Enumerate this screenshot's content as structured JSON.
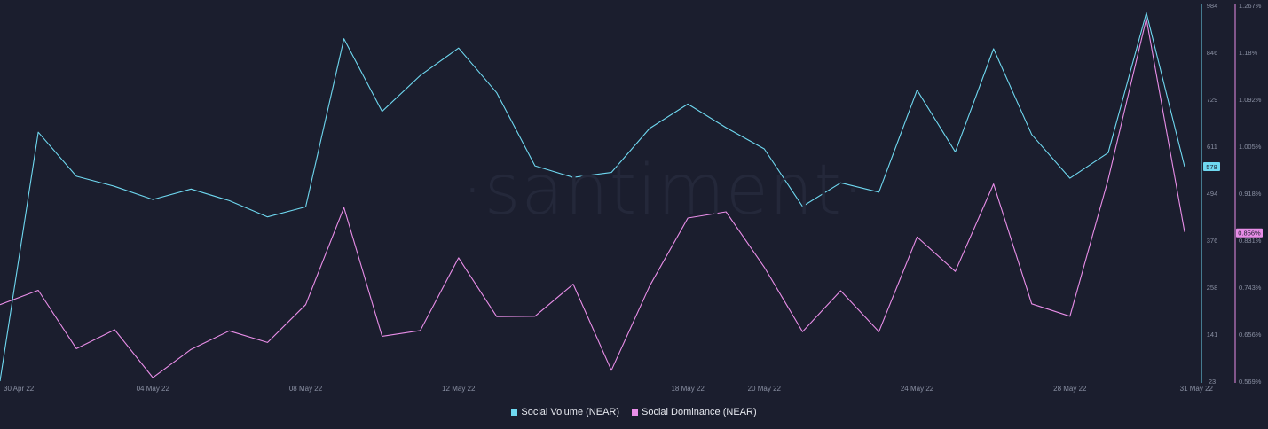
{
  "watermark": "·santiment·",
  "chart_data": {
    "type": "line",
    "x": [
      "30 Apr 22",
      "01 May 22",
      "02 May 22",
      "03 May 22",
      "04 May 22",
      "05 May 22",
      "06 May 22",
      "07 May 22",
      "08 May 22",
      "09 May 22",
      "10 May 22",
      "11 May 22",
      "12 May 22",
      "13 May 22",
      "14 May 22",
      "15 May 22",
      "16 May 22",
      "17 May 22",
      "18 May 22",
      "19 May 22",
      "20 May 22",
      "21 May 22",
      "22 May 22",
      "23 May 22",
      "24 May 22",
      "25 May 22",
      "26 May 22",
      "27 May 22",
      "28 May 22",
      "29 May 22",
      "30 May 22",
      "31 May 22"
    ],
    "x_tick_labels": [
      "30 Apr 22",
      "04 May 22",
      "08 May 22",
      "12 May 22",
      "18 May 22",
      "20 May 22",
      "24 May 22",
      "28 May 22",
      "31 May 22"
    ],
    "left_axis": {
      "ticks": [
        "984",
        "846",
        "729",
        "611",
        "494",
        "376",
        "258",
        "141",
        "23"
      ],
      "ylim": [
        23,
        984
      ],
      "current_value_label": "578"
    },
    "right_axis": {
      "ticks": [
        "1.267%",
        "1.18%",
        "1.092%",
        "1.005%",
        "0.918%",
        "0.831%",
        "0.743%",
        "0.656%",
        "0.569%"
      ],
      "ylim": [
        0.569,
        1.267
      ],
      "current_value_label": "0.856%"
    },
    "series": [
      {
        "name": "Social Volume (NEAR)",
        "axis": "left",
        "color": "#6fd8f0",
        "values": [
          23,
          667,
          553,
          527,
          493,
          520,
          490,
          448,
          474,
          909,
          721,
          814,
          885,
          769,
          580,
          550,
          563,
          677,
          740,
          679,
          624,
          475,
          536,
          512,
          776,
          616,
          883,
          661,
          548,
          614,
          976,
          578
        ]
      },
      {
        "name": "Social Dominance (NEAR)",
        "axis": "left-scaled",
        "color": "#e98ee8",
        "values": [
          221,
          258,
          107,
          156,
          32,
          105,
          153,
          123,
          221,
          472,
          139,
          154,
          342,
          190,
          191,
          274,
          51,
          269,
          445,
          461,
          318,
          151,
          257,
          151,
          396,
          307,
          533,
          223,
          191,
          545,
          961,
          409
        ]
      }
    ],
    "legend_position": "bottom-center",
    "grid": false
  }
}
